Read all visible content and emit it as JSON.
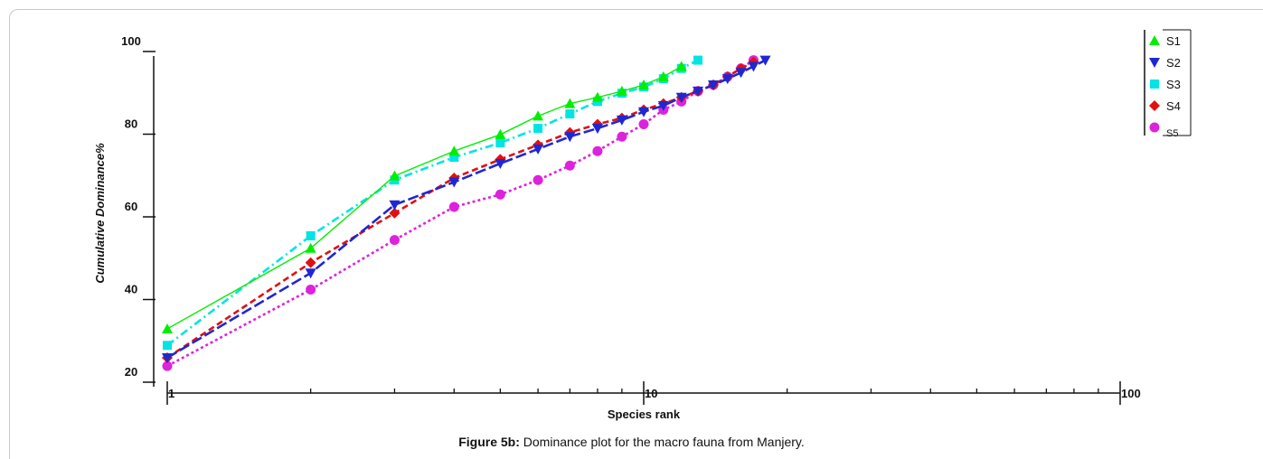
{
  "caption": {
    "label": "Figure 5b:",
    "text": " Dominance plot for the macro fauna from Manjery."
  },
  "chart_data": {
    "type": "line",
    "title": "",
    "xlabel": "Species rank",
    "ylabel": "Cumulative  Dominance%",
    "x_scale": "log",
    "xlim": [
      1,
      100
    ],
    "ylim": [
      20,
      100
    ],
    "x_tick_labels": [
      "1",
      "10",
      "100"
    ],
    "y_tick_labels": [
      "20",
      "40",
      "60",
      "80",
      "100"
    ],
    "legend_position": "top-right",
    "series": [
      {
        "name": "S1",
        "marker": "triangle-up",
        "color": "#00ee00",
        "dash": "solid",
        "x": [
          1,
          2,
          3,
          4,
          5,
          6,
          7,
          8,
          9,
          10,
          11,
          12
        ],
        "y": [
          34,
          53.5,
          71,
          77,
          81,
          85.5,
          88.5,
          90,
          91.5,
          93,
          95,
          97.5
        ]
      },
      {
        "name": "S2",
        "marker": "triangle-down",
        "color": "#1e28d2",
        "dash": "long-dash",
        "x": [
          1,
          2,
          3,
          4,
          5,
          6,
          7,
          8,
          9,
          10,
          11,
          12,
          13,
          14,
          15,
          16,
          17,
          18
        ],
        "y": [
          27,
          47.5,
          64,
          69.5,
          74,
          77.5,
          80.5,
          82.5,
          84.5,
          86.5,
          88,
          90,
          91.5,
          93,
          94.5,
          96,
          97.5,
          99
        ]
      },
      {
        "name": "S3",
        "marker": "square",
        "color": "#00e4e4",
        "dash": "dash-dot",
        "x": [
          1,
          2,
          3,
          4,
          5,
          6,
          7,
          8,
          9,
          10,
          11,
          12,
          13
        ],
        "y": [
          30,
          56.5,
          70,
          75.5,
          79,
          82.5,
          86,
          89,
          91,
          92.5,
          94.5,
          97,
          99
        ]
      },
      {
        "name": "S4",
        "marker": "diamond",
        "color": "#e01010",
        "dash": "dashed",
        "x": [
          1,
          2,
          3,
          4,
          5,
          6,
          7,
          8,
          9,
          10,
          11,
          12,
          13,
          14,
          15,
          16,
          17
        ],
        "y": [
          27,
          50,
          62,
          70.5,
          75,
          78.5,
          81.5,
          83.5,
          85,
          87,
          88.5,
          90,
          91.5,
          93,
          95,
          97,
          98.5
        ]
      },
      {
        "name": "S5",
        "marker": "circle",
        "color": "#dd22dd",
        "dash": "dotted",
        "x": [
          1,
          2,
          3,
          4,
          5,
          6,
          7,
          8,
          9,
          10,
          11,
          12,
          13,
          14,
          15,
          16,
          17
        ],
        "y": [
          25,
          43.5,
          55.5,
          63.5,
          66.5,
          70,
          73.5,
          77,
          80.5,
          83.5,
          87,
          89,
          91.5,
          93,
          95,
          97,
          99
        ]
      }
    ]
  }
}
